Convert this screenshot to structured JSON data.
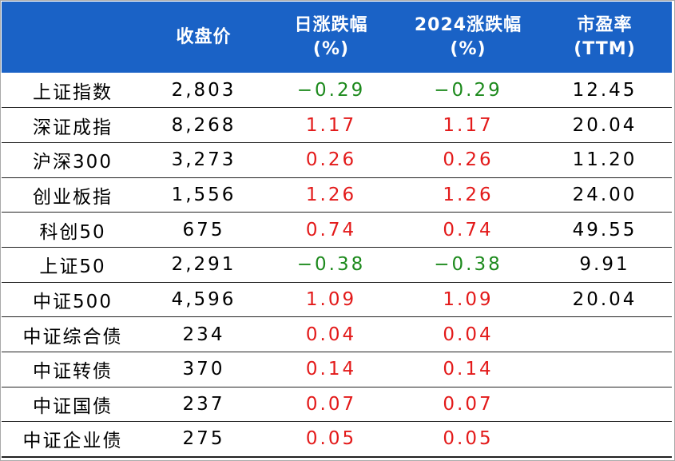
{
  "headers": {
    "close": "收盘价",
    "daily": [
      "日涨跌幅",
      "(%)"
    ],
    "ytd": [
      "2024涨跌幅",
      "(%)"
    ],
    "pe": [
      "市盈率",
      "(TTM)"
    ]
  },
  "colors": {
    "header_bg": "#1a62c6",
    "positive": "#e31a1a",
    "negative": "#1d8a1d"
  },
  "rows": [
    {
      "name": "上证指数",
      "close": "2,803",
      "daily": "−0.29",
      "ytd": "−0.29",
      "pe": "12.45"
    },
    {
      "name": "深证成指",
      "close": "8,268",
      "daily": "1.17",
      "ytd": "1.17",
      "pe": "20.04"
    },
    {
      "name": "沪深300",
      "close": "3,273",
      "daily": "0.26",
      "ytd": "0.26",
      "pe": "11.20"
    },
    {
      "name": "创业板指",
      "close": "1,556",
      "daily": "1.26",
      "ytd": "1.26",
      "pe": "24.00"
    },
    {
      "name": "科创50",
      "close": "675",
      "daily": "0.74",
      "ytd": "0.74",
      "pe": "49.55"
    },
    {
      "name": "上证50",
      "close": "2,291",
      "daily": "−0.38",
      "ytd": "−0.38",
      "pe": "9.91"
    },
    {
      "name": "中证500",
      "close": "4,596",
      "daily": "1.09",
      "ytd": "1.09",
      "pe": "20.04"
    },
    {
      "name": "中证综合债",
      "close": "234",
      "daily": "0.04",
      "ytd": "0.04",
      "pe": ""
    },
    {
      "name": "中证转债",
      "close": "370",
      "daily": "0.14",
      "ytd": "0.14",
      "pe": ""
    },
    {
      "name": "中证国债",
      "close": "237",
      "daily": "0.07",
      "ytd": "0.07",
      "pe": ""
    },
    {
      "name": "中证企业债",
      "close": "275",
      "daily": "0.05",
      "ytd": "0.05",
      "pe": ""
    }
  ]
}
